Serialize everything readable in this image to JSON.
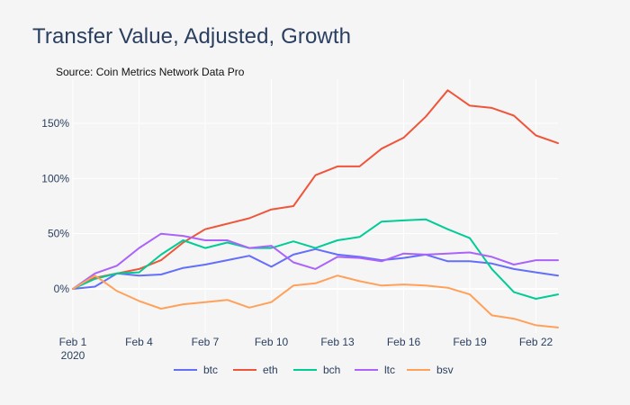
{
  "chart_data": {
    "type": "line",
    "title": "Transfer Value, Adjusted, Growth",
    "subtitle": "Source: Coin Metrics Network Data Pro",
    "xlabel": "",
    "ylabel": "",
    "ylim": [
      -40,
      190
    ],
    "grid": true,
    "legend_position": "bottom",
    "x_ticks": [
      {
        "day": 0,
        "label": "Feb 1",
        "sublabel": "2020"
      },
      {
        "day": 3,
        "label": "Feb 4"
      },
      {
        "day": 6,
        "label": "Feb 7"
      },
      {
        "day": 9,
        "label": "Feb 10"
      },
      {
        "day": 12,
        "label": "Feb 13"
      },
      {
        "day": 15,
        "label": "Feb 16"
      },
      {
        "day": 18,
        "label": "Feb 19"
      },
      {
        "day": 21,
        "label": "Feb 22"
      }
    ],
    "y_ticks": [
      {
        "value": 0,
        "label": "0%"
      },
      {
        "value": 50,
        "label": "50%"
      },
      {
        "value": 100,
        "label": "100%"
      },
      {
        "value": 150,
        "label": "150%"
      }
    ],
    "x": [
      "Feb 1",
      "Feb 2",
      "Feb 3",
      "Feb 4",
      "Feb 5",
      "Feb 6",
      "Feb 7",
      "Feb 8",
      "Feb 9",
      "Feb 10",
      "Feb 11",
      "Feb 12",
      "Feb 13",
      "Feb 14",
      "Feb 15",
      "Feb 16",
      "Feb 17",
      "Feb 18",
      "Feb 19",
      "Feb 20",
      "Feb 21",
      "Feb 22",
      "Feb 23"
    ],
    "series": [
      {
        "name": "btc",
        "color": "#636efa",
        "values": [
          0,
          2,
          14,
          12,
          13,
          19,
          22,
          26,
          30,
          20,
          31,
          36,
          31,
          29,
          26,
          28,
          31,
          25,
          25,
          23,
          18,
          15,
          12
        ]
      },
      {
        "name": "eth",
        "color": "#ef553b",
        "values": [
          0,
          10,
          14,
          18,
          26,
          42,
          54,
          59,
          64,
          72,
          75,
          103,
          111,
          111,
          127,
          137,
          156,
          180,
          166,
          164,
          157,
          139,
          132
        ]
      },
      {
        "name": "bch",
        "color": "#00cc96",
        "values": [
          0,
          9,
          14,
          15,
          31,
          44,
          37,
          42,
          37,
          37,
          43,
          37,
          44,
          47,
          61,
          62,
          63,
          54,
          46,
          18,
          -3,
          -9,
          -5
        ]
      },
      {
        "name": "ltc",
        "color": "#ab63fa",
        "values": [
          0,
          14,
          21,
          37,
          50,
          48,
          44,
          44,
          37,
          39,
          24,
          18,
          29,
          28,
          25,
          32,
          31,
          32,
          33,
          29,
          22,
          26,
          26
        ]
      },
      {
        "name": "bsv",
        "color": "#ffa15a",
        "values": [
          0,
          12,
          -2,
          -11,
          -18,
          -14,
          -12,
          -10,
          -17,
          -12,
          3,
          5,
          12,
          7,
          3,
          4,
          3,
          1,
          -5,
          -24,
          -27,
          -33,
          -35
        ]
      }
    ]
  }
}
